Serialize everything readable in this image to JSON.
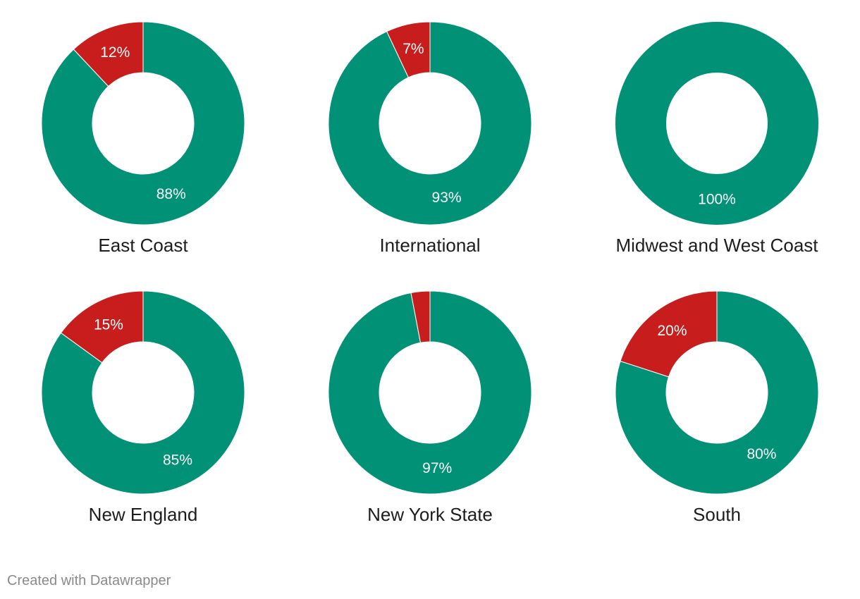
{
  "colors": {
    "majority": "#009177",
    "minority": "#c71e1d",
    "label_text": "#ffffff",
    "title_text": "#1d1d1d"
  },
  "chart_data": [
    {
      "type": "pie",
      "title": "East Coast",
      "slices": [
        {
          "value": 88,
          "label": "88%",
          "color": "#009177"
        },
        {
          "value": 12,
          "label": "12%",
          "color": "#c71e1d"
        }
      ]
    },
    {
      "type": "pie",
      "title": "International",
      "slices": [
        {
          "value": 93,
          "label": "93%",
          "color": "#009177"
        },
        {
          "value": 7,
          "label": "7%",
          "color": "#c71e1d"
        }
      ]
    },
    {
      "type": "pie",
      "title": "Midwest and West Coast",
      "slices": [
        {
          "value": 100,
          "label": "100%",
          "color": "#009177"
        }
      ]
    },
    {
      "type": "pie",
      "title": "New England",
      "slices": [
        {
          "value": 85,
          "label": "85%",
          "color": "#009177"
        },
        {
          "value": 15,
          "label": "15%",
          "color": "#c71e1d"
        }
      ]
    },
    {
      "type": "pie",
      "title": "New York State",
      "slices": [
        {
          "value": 97,
          "label": "97%",
          "color": "#009177"
        },
        {
          "value": 3,
          "label": "",
          "color": "#c71e1d"
        }
      ]
    },
    {
      "type": "pie",
      "title": "South",
      "slices": [
        {
          "value": 80,
          "label": "80%",
          "color": "#009177"
        },
        {
          "value": 20,
          "label": "20%",
          "color": "#c71e1d"
        }
      ]
    }
  ],
  "footer": {
    "credit": "Created with Datawrapper"
  }
}
